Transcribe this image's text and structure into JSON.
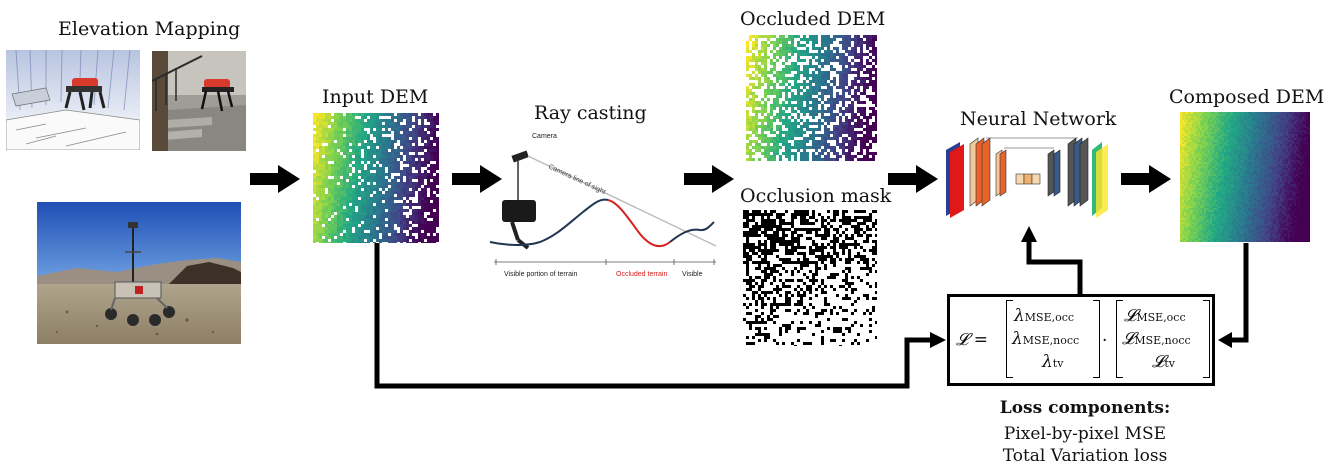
{
  "titles": {
    "elevation_mapping": "Elevation Mapping",
    "input_dem": "Input DEM",
    "ray_casting": "Ray casting",
    "occluded_dem": "Occluded DEM",
    "occlusion_mask": "Occlusion mask",
    "neural_network": "Neural Network",
    "composed_dem": "Composed DEM"
  },
  "ray_casting": {
    "camera": "Camera",
    "line_of_sight": "Camera line of sight",
    "visible_portion": "Visible portion of terrain",
    "occluded_terrain": "Occluded terrain",
    "visible": "Visible"
  },
  "loss": {
    "lhs": "𝓛 =",
    "lambda_occ": "λ",
    "lambda_occ_sub": "MSE,occ",
    "lambda_nocc": "λ",
    "lambda_nocc_sub": "MSE,nocc",
    "lambda_tv": "λ",
    "lambda_tv_sub": "tv",
    "dot": "·",
    "l_occ": "𝓛",
    "l_occ_sub": "MSE,occ",
    "l_nocc": "𝓛",
    "l_nocc_sub": "MSE,nocc",
    "l_tv": "𝓛",
    "l_tv_sub": "tv"
  },
  "loss_components": {
    "title": "Loss components:",
    "items": [
      "Pixel-by-pixel MSE",
      "Total Variation loss"
    ]
  },
  "colors": {
    "viridis_start": "#c6e030",
    "viridis_mid": "#21918c",
    "viridis_end": "#440154",
    "occluded_red": "#d62020",
    "terrain_blue": "#1f3550"
  }
}
